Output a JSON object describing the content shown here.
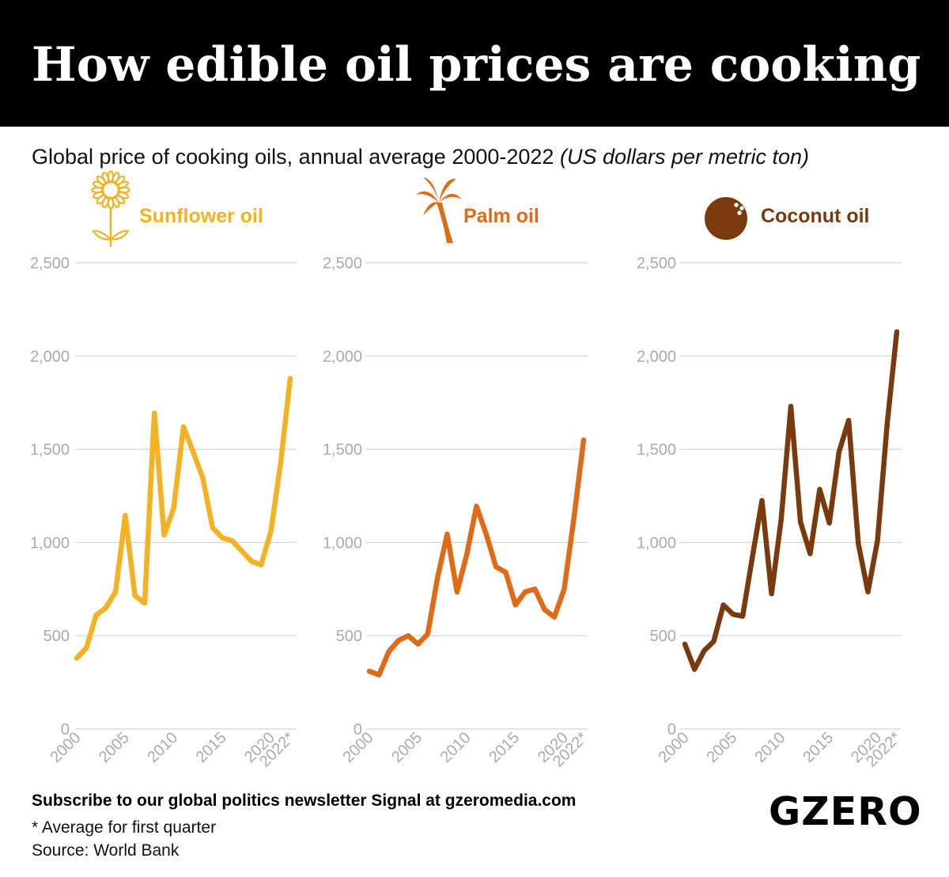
{
  "header": {
    "title": "How edible oil prices are cooking",
    "subtitle_main": "Global price of cooking oils, annual average 2000-2022 ",
    "subtitle_unit": "(US dollars per metric ton)"
  },
  "footer": {
    "cta": "Subscribe to our global politics newsletter Signal at gzeromedia.com",
    "note": "* Average for first quarter",
    "source": "Source: World Bank",
    "brand": "GZERO"
  },
  "chart_data": [
    {
      "type": "line",
      "name": "Sunflower oil",
      "color": "#F4B223",
      "icon": "sunflower-icon",
      "x": [
        2000,
        2001,
        2002,
        2003,
        2004,
        2005,
        2006,
        2007,
        2008,
        2009,
        2010,
        2011,
        2012,
        2013,
        2014,
        2015,
        2016,
        2017,
        2018,
        2019,
        2020,
        2021,
        2022
      ],
      "x_tick_labels": [
        "2000",
        "2005",
        "2010",
        "2015",
        "2020",
        "2022*"
      ],
      "y_tick_labels": [
        "0",
        "500",
        "1,000",
        "1,500",
        "2,000",
        "2,500"
      ],
      "ylim": [
        0,
        2500
      ],
      "values": [
        380,
        435,
        610,
        650,
        735,
        1145,
        715,
        675,
        1695,
        1040,
        1185,
        1620,
        1485,
        1345,
        1080,
        1025,
        1010,
        955,
        900,
        880,
        1060,
        1420,
        1880
      ]
    },
    {
      "type": "line",
      "name": "Palm oil",
      "color": "#E06A16",
      "icon": "palm-tree-icon",
      "x": [
        2000,
        2001,
        2002,
        2003,
        2004,
        2005,
        2006,
        2007,
        2008,
        2009,
        2010,
        2011,
        2012,
        2013,
        2014,
        2015,
        2016,
        2017,
        2018,
        2019,
        2020,
        2021,
        2022
      ],
      "x_tick_labels": [
        "2000",
        "2005",
        "2010",
        "2015",
        "2020",
        "2022*"
      ],
      "y_tick_labels": [
        "0",
        "500",
        "1,000",
        "1,500",
        "2,000",
        "2,500"
      ],
      "ylim": [
        0,
        2500
      ],
      "values": [
        310,
        290,
        415,
        475,
        500,
        455,
        510,
        810,
        1045,
        735,
        935,
        1195,
        1045,
        870,
        840,
        665,
        735,
        750,
        640,
        600,
        750,
        1130,
        1550
      ]
    },
    {
      "type": "line",
      "name": "Coconut oil",
      "color": "#7A3A0E",
      "icon": "coconut-icon",
      "x": [
        2000,
        2001,
        2002,
        2003,
        2004,
        2005,
        2006,
        2007,
        2008,
        2009,
        2010,
        2011,
        2012,
        2013,
        2014,
        2015,
        2016,
        2017,
        2018,
        2019,
        2020,
        2021,
        2022
      ],
      "x_tick_labels": [
        "2000",
        "2005",
        "2010",
        "2015",
        "2020",
        "2022*"
      ],
      "y_tick_labels": [
        "0",
        "500",
        "1,000",
        "1,500",
        "2,000",
        "2,500"
      ],
      "ylim": [
        0,
        2500
      ],
      "values": [
        455,
        320,
        420,
        470,
        665,
        615,
        605,
        920,
        1225,
        725,
        1125,
        1730,
        1110,
        940,
        1285,
        1105,
        1485,
        1655,
        995,
        735,
        1010,
        1635,
        2130
      ]
    }
  ]
}
